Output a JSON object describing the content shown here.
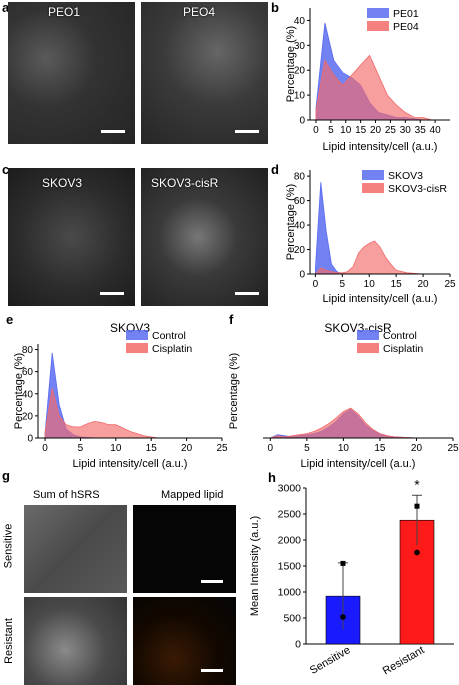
{
  "panels": {
    "a": {
      "label": "a",
      "left_title": "PEO1",
      "right_title": "PEO4"
    },
    "c": {
      "label": "c",
      "left_title": "SKOV3",
      "right_title": "SKOV3-cisR"
    },
    "g": {
      "label": "g",
      "col1": "Sum of hSRS",
      "col2": "Mapped lipid",
      "row1": "Sensitive",
      "row2": "Resistant"
    }
  },
  "chart_data": [
    {
      "id": "b",
      "label": "b",
      "type": "area",
      "xlabel": "Lipid intensity/cell (a.u.)",
      "ylabel": "Percentage (%)",
      "xlim": [
        -2,
        45
      ],
      "ylim": [
        0,
        45
      ],
      "xticks": [
        0,
        5,
        10,
        15,
        20,
        25,
        30,
        35,
        40
      ],
      "yticks": [
        0,
        10,
        20,
        30,
        40
      ],
      "legend_position": "top-right",
      "series": [
        {
          "name": "PE01",
          "color": "#5b6cf0",
          "x": [
            0,
            3,
            6,
            9,
            12,
            15,
            18,
            21,
            24,
            27,
            30,
            33,
            36,
            39,
            42
          ],
          "y": [
            5,
            39,
            24,
            19,
            17,
            14,
            7,
            3,
            2,
            1,
            1,
            0.5,
            0,
            0,
            0
          ]
        },
        {
          "name": "PE04",
          "color": "#f26a6a",
          "x": [
            0,
            3,
            6,
            9,
            12,
            15,
            18,
            21,
            24,
            27,
            30,
            33,
            36,
            39,
            42
          ],
          "y": [
            4,
            24,
            18,
            14,
            18,
            22,
            26,
            18,
            10,
            6,
            3,
            1,
            1,
            0,
            0
          ]
        }
      ]
    },
    {
      "id": "d",
      "label": "d",
      "type": "area",
      "xlabel": "Lipid intensity/cell (a.u.)",
      "ylabel": "Percentage (%)",
      "xlim": [
        -1,
        25
      ],
      "ylim": [
        0,
        85
      ],
      "xticks": [
        0,
        5,
        10,
        15,
        20,
        25
      ],
      "yticks": [
        0,
        20,
        40,
        60,
        80
      ],
      "legend_position": "top-right",
      "series": [
        {
          "name": "SKOV3",
          "color": "#5b6cf0",
          "x": [
            0,
            1,
            2,
            3,
            4,
            5,
            6,
            8,
            10,
            15,
            20,
            25
          ],
          "y": [
            5,
            75,
            35,
            8,
            2,
            0,
            0,
            0,
            0,
            0,
            0,
            0
          ]
        },
        {
          "name": "SKOV3-cisR",
          "color": "#f26a6a",
          "x": [
            0,
            1,
            2,
            3,
            4,
            5,
            6,
            7,
            8,
            9,
            10,
            11,
            12,
            13,
            14,
            15,
            17,
            20,
            25
          ],
          "y": [
            0,
            5,
            3,
            2,
            1,
            1,
            2,
            6,
            17,
            22,
            25,
            27,
            22,
            14,
            8,
            3,
            1,
            0,
            0
          ]
        }
      ]
    },
    {
      "id": "e",
      "label": "e",
      "type": "area",
      "title": "SKOV3",
      "xlabel": "Lipid intensity/cell (a.u.)",
      "ylabel": "Percentage (%)",
      "xlim": [
        -1,
        25
      ],
      "ylim": [
        0,
        85
      ],
      "xticks": [
        0,
        5,
        10,
        15,
        20,
        25
      ],
      "yticks": [
        0,
        20,
        40,
        60,
        80
      ],
      "legend_position": "top-right",
      "series": [
        {
          "name": "Control",
          "color": "#5b6cf0",
          "x": [
            0,
            1,
            2,
            3,
            4,
            5,
            7,
            10,
            15,
            20,
            25
          ],
          "y": [
            5,
            77,
            30,
            8,
            3,
            1,
            0,
            0,
            0,
            0,
            0
          ]
        },
        {
          "name": "Cisplatin",
          "color": "#f26a6a",
          "x": [
            0,
            1,
            2,
            3,
            4,
            5,
            6,
            7,
            8,
            9,
            10,
            11,
            12,
            13,
            14,
            15,
            16,
            20,
            25
          ],
          "y": [
            5,
            45,
            20,
            12,
            10,
            10,
            13,
            15,
            14,
            12,
            12,
            9,
            6,
            4,
            2,
            1,
            0,
            0,
            0
          ]
        }
      ]
    },
    {
      "id": "f",
      "label": "f",
      "type": "area",
      "title": "SKOV3-cisR",
      "xlabel": "Lipid intensity/cell (a.u.)",
      "ylabel": "Percentage (%)",
      "xlim": [
        -1,
        25
      ],
      "ylim": [
        0,
        85
      ],
      "xticks": [
        0,
        5,
        10,
        15,
        20,
        25
      ],
      "yticks": [],
      "legend_position": "top-right",
      "series": [
        {
          "name": "Control",
          "color": "#5b6cf0",
          "x": [
            0,
            1,
            2,
            3,
            4,
            5,
            6,
            7,
            8,
            9,
            10,
            11,
            12,
            13,
            14,
            15,
            16,
            17,
            20,
            25
          ],
          "y": [
            0,
            3,
            2,
            1,
            2,
            3,
            4,
            6,
            10,
            15,
            22,
            26,
            20,
            12,
            7,
            4,
            2,
            1,
            0,
            0
          ]
        },
        {
          "name": "Cisplatin",
          "color": "#f26a6a",
          "x": [
            0,
            1,
            2,
            3,
            4,
            5,
            6,
            7,
            8,
            9,
            10,
            11,
            12,
            13,
            14,
            15,
            16,
            17,
            20,
            25
          ],
          "y": [
            0,
            2,
            1,
            2,
            3,
            4,
            6,
            9,
            13,
            18,
            24,
            27,
            22,
            14,
            8,
            4,
            2,
            1,
            0,
            0
          ]
        }
      ]
    },
    {
      "id": "h",
      "label": "h",
      "type": "bar",
      "ylabel": "Mean Intensity (a.u.)",
      "ylim": [
        0,
        3000
      ],
      "yticks": [
        0,
        500,
        1000,
        1500,
        2000,
        2500,
        3000
      ],
      "categories": [
        "Sensitive",
        "Resistant"
      ],
      "values": [
        920,
        2380
      ],
      "errors": [
        640,
        480
      ],
      "colors": [
        "#1a1aff",
        "#ff1a1a"
      ],
      "points": [
        [
          1550,
          520
        ],
        [
          2650,
          1760
        ]
      ],
      "annotation": "*"
    }
  ]
}
